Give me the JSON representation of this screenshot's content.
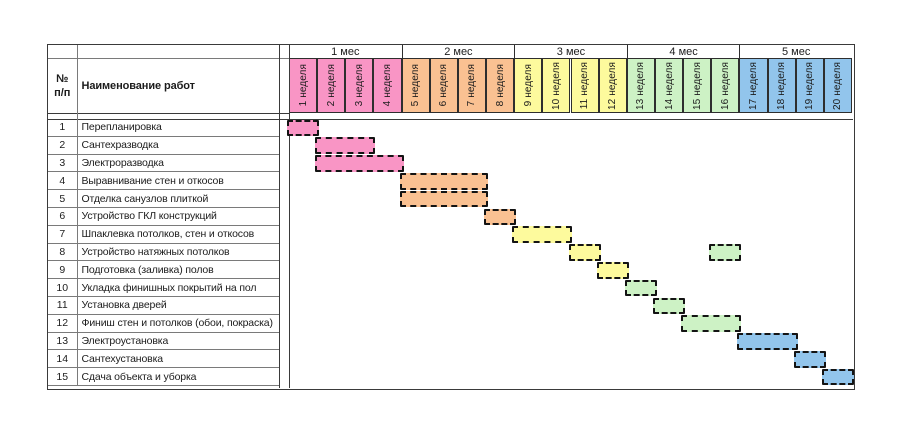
{
  "table": {
    "number_header": "№\nп/п",
    "works_header": "Наименование работ"
  },
  "chart_data": {
    "type": "bar",
    "subtype": "gantt-schedule",
    "title": "",
    "x_unit": "неделя",
    "x_range": [
      1,
      20
    ],
    "grid": false,
    "legend": false,
    "months": [
      {
        "label": "1 мес",
        "weeks": [
          1,
          4
        ],
        "color": "#F995C5"
      },
      {
        "label": "2 мес",
        "weeks": [
          5,
          8
        ],
        "color": "#FAC192"
      },
      {
        "label": "3 мес",
        "weeks": [
          9,
          12
        ],
        "color": "#FDFA9D"
      },
      {
        "label": "4 мес",
        "weeks": [
          13,
          16
        ],
        "color": "#CDF2C5"
      },
      {
        "label": "5 мес",
        "weeks": [
          17,
          20
        ],
        "color": "#92C5EC"
      }
    ],
    "week_labels": [
      "1 неделя",
      "2 неделя",
      "3 неделя",
      "4 неделя",
      "5 неделя",
      "6 неделя",
      "7 неделя",
      "8 неделя",
      "9 неделя",
      "10 неделя",
      "11 неделя",
      "12 неделя",
      "13 неделя",
      "14 неделя",
      "15 неделя",
      "16 неделя",
      "17 неделя",
      "18 неделя",
      "19 неделя",
      "20 неделя"
    ],
    "tasks": [
      {
        "num": "1",
        "name": "Перепланировка",
        "spans": [
          [
            1,
            1
          ]
        ]
      },
      {
        "num": "2",
        "name": "Сантехразводка",
        "spans": [
          [
            2,
            3
          ]
        ]
      },
      {
        "num": "3",
        "name": "Электроразводка",
        "spans": [
          [
            2,
            4
          ]
        ]
      },
      {
        "num": "4",
        "name": "Выравнивание стен и откосов",
        "spans": [
          [
            5,
            7
          ]
        ]
      },
      {
        "num": "5",
        "name": "Отделка санузлов плиткой",
        "spans": [
          [
            5,
            7
          ]
        ]
      },
      {
        "num": "6",
        "name": "Устройство ГКЛ конструкций",
        "spans": [
          [
            8,
            8
          ]
        ]
      },
      {
        "num": "7",
        "name": "Шпаклевка потолков, стен и откосов",
        "spans": [
          [
            9,
            10
          ]
        ]
      },
      {
        "num": "8",
        "name": "Устройство натяжных потолков",
        "spans": [
          [
            11,
            11
          ],
          [
            16,
            16
          ]
        ]
      },
      {
        "num": "9",
        "name": "Подготовка (заливка) полов",
        "spans": [
          [
            12,
            12
          ]
        ]
      },
      {
        "num": "10",
        "name": "Укладка финишных покрытий на пол",
        "spans": [
          [
            13,
            13
          ]
        ]
      },
      {
        "num": "11",
        "name": "Установка дверей",
        "spans": [
          [
            14,
            14
          ]
        ]
      },
      {
        "num": "12",
        "name": "Финиш стен и потолков (обои, покраска)",
        "spans": [
          [
            15,
            16
          ]
        ]
      },
      {
        "num": "13",
        "name": "Электроустановка",
        "spans": [
          [
            17,
            18
          ]
        ]
      },
      {
        "num": "14",
        "name": "Сантехустановка",
        "spans": [
          [
            19,
            19
          ]
        ]
      },
      {
        "num": "15",
        "name": "Сдача объекта и уборка",
        "spans": [
          [
            20,
            20
          ]
        ]
      }
    ]
  },
  "colors": {
    "bar_border": "#141414",
    "grid_heavy": "#3a3a3a",
    "grid_light": "#7a7a7a",
    "text": "#1c1c1c",
    "background": "#ffffff"
  }
}
